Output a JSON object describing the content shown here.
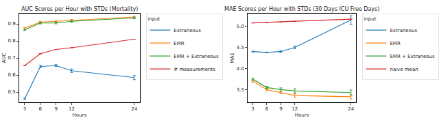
{
  "chart_data": [
    {
      "type": "line",
      "title": "AUC Scores per Hour with STDs (Mortality)",
      "x_label": "Hours",
      "y_label": "AUC",
      "x": [
        3,
        6,
        9,
        12,
        24
      ],
      "xlim": [
        1.95,
        25.05
      ],
      "xticks": [
        3,
        6,
        9,
        12,
        24
      ],
      "ylim": [
        0.44,
        0.96
      ],
      "yticks": [
        0.5,
        0.6,
        0.7,
        0.8,
        0.9
      ],
      "grid": false,
      "legend": "right",
      "legend_title": "input",
      "series": [
        {
          "name": "Extraneous",
          "color": "#1f77b4",
          "values": [
            0.46,
            0.65,
            0.655,
            0.625,
            0.585
          ],
          "errors": [
            0.005,
            0.008,
            0.006,
            0.01,
            0.012
          ]
        },
        {
          "name": "EMR",
          "color": "#ff7f0e",
          "values": [
            0.875,
            0.91,
            0.915,
            0.92,
            0.94
          ],
          "errors": [
            0.004,
            0.005,
            0.005,
            0.006,
            0.005
          ]
        },
        {
          "name": "EMR + Extraneous",
          "color": "#2ca02c",
          "values": [
            0.865,
            0.905,
            0.905,
            0.915,
            0.935
          ],
          "errors": [
            0.004,
            0.005,
            0.005,
            0.006,
            0.005
          ]
        },
        {
          "name": "# measurements",
          "color": "#d62728",
          "values": [
            0.655,
            0.725,
            0.75,
            0.76,
            0.81
          ],
          "errors": [
            0,
            0,
            0,
            0,
            0
          ]
        }
      ]
    },
    {
      "type": "line",
      "title": "MAE Scores per Hour with STDs (30 Days ICU Free Days)",
      "x_label": "Hours",
      "y_label": "MAE",
      "x": [
        3,
        6,
        9,
        12,
        24
      ],
      "xlim": [
        1.95,
        25.05
      ],
      "xticks": [
        3,
        6,
        9,
        12,
        24
      ],
      "ylim": [
        3.2,
        5.3
      ],
      "yticks": [
        3.5,
        {
          "value": 4,
          "label": "4.0"
        },
        4.5,
        {
          "value": 5,
          "label": "5.0"
        }
      ],
      "grid": false,
      "legend": "right",
      "legend_title": "input",
      "series": [
        {
          "name": "Extraneous",
          "color": "#1f77b4",
          "values": [
            4.4,
            4.38,
            4.4,
            4.5,
            5.15
          ],
          "errors": [
            0.01,
            0.01,
            0.02,
            0.03,
            0.1
          ]
        },
        {
          "name": "EMR",
          "color": "#ff7f0e",
          "values": [
            3.7,
            3.5,
            3.43,
            3.36,
            3.33
          ],
          "errors": [
            0.02,
            0.03,
            0.03,
            0.04,
            0.05
          ]
        },
        {
          "name": "EMR + Extraneous",
          "color": "#2ca02c",
          "values": [
            3.75,
            3.55,
            3.5,
            3.47,
            3.43
          ],
          "errors": [
            0.02,
            0.03,
            0.04,
            0.05,
            0.06
          ]
        },
        {
          "name": "naive mean",
          "color": "#d62728",
          "values": [
            5.08,
            5.09,
            5.1,
            5.12,
            5.17
          ],
          "errors": [
            0,
            0,
            0,
            0,
            0
          ]
        }
      ]
    }
  ]
}
